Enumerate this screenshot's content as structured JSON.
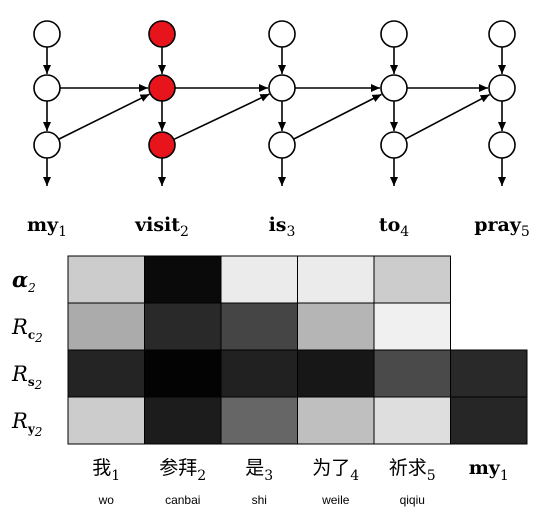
{
  "graph": {
    "columns": [
      {
        "word": "my",
        "index": "1",
        "highlight": [
          false,
          false,
          false
        ]
      },
      {
        "word": "visit",
        "index": "2",
        "highlight": [
          true,
          true,
          true
        ]
      },
      {
        "word": "is",
        "index": "3",
        "highlight": [
          false,
          false,
          false
        ]
      },
      {
        "word": "to",
        "index": "4",
        "highlight": [
          false,
          false,
          false
        ]
      },
      {
        "word": "pray",
        "index": "5",
        "highlight": [
          false,
          false,
          false
        ]
      }
    ],
    "highlight_color": "#e8141c"
  },
  "heatmap": {
    "rows": [
      {
        "label": "α",
        "sub": "2",
        "bold": true
      },
      {
        "label": "R",
        "sub": "c",
        "sub2": "2"
      },
      {
        "label": "R",
        "sub": "s",
        "sub2": "2"
      },
      {
        "label": "R",
        "sub": "y",
        "sub2": "2"
      }
    ],
    "cells": [
      [
        0.8,
        0.04,
        0.92,
        0.92,
        0.8,
        null
      ],
      [
        0.67,
        0.16,
        0.27,
        0.71,
        0.94,
        null
      ],
      [
        0.14,
        0.01,
        0.13,
        0.09,
        0.29,
        0.16
      ],
      [
        0.8,
        0.11,
        0.4,
        0.75,
        0.87,
        0.15
      ]
    ],
    "columns": [
      {
        "text": "我",
        "index": "1",
        "pinyin": "wo"
      },
      {
        "text": "参拜",
        "index": "2",
        "pinyin": "canbai"
      },
      {
        "text": "是",
        "index": "3",
        "pinyin": "shi"
      },
      {
        "text": "为了",
        "index": "4",
        "pinyin": "weile"
      },
      {
        "text": "祈求",
        "index": "5",
        "pinyin": "qiqiu"
      },
      {
        "text": "my",
        "index": "1",
        "pinyin": ""
      }
    ]
  }
}
